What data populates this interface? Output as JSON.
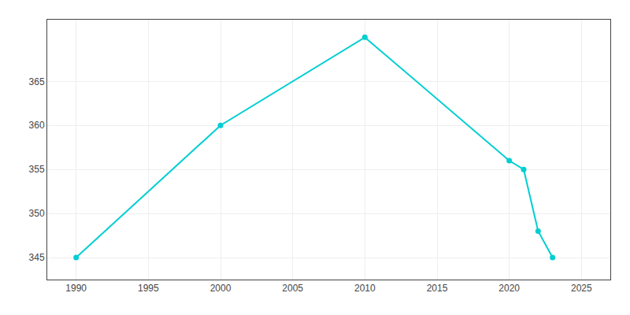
{
  "chart_data": {
    "type": "line",
    "x": [
      1990,
      2000,
      2010,
      2020,
      2021,
      2022,
      2023
    ],
    "values": [
      345,
      360,
      370,
      356,
      355,
      348,
      345
    ],
    "color": "#00CED1",
    "marker": "circle",
    "xlim": [
      1988,
      2027
    ],
    "ylim": [
      342.5,
      372
    ],
    "xticks": [
      1990,
      1995,
      2000,
      2005,
      2010,
      2015,
      2020,
      2025
    ],
    "yticks": [
      345,
      350,
      355,
      360,
      365
    ],
    "grid": true
  }
}
